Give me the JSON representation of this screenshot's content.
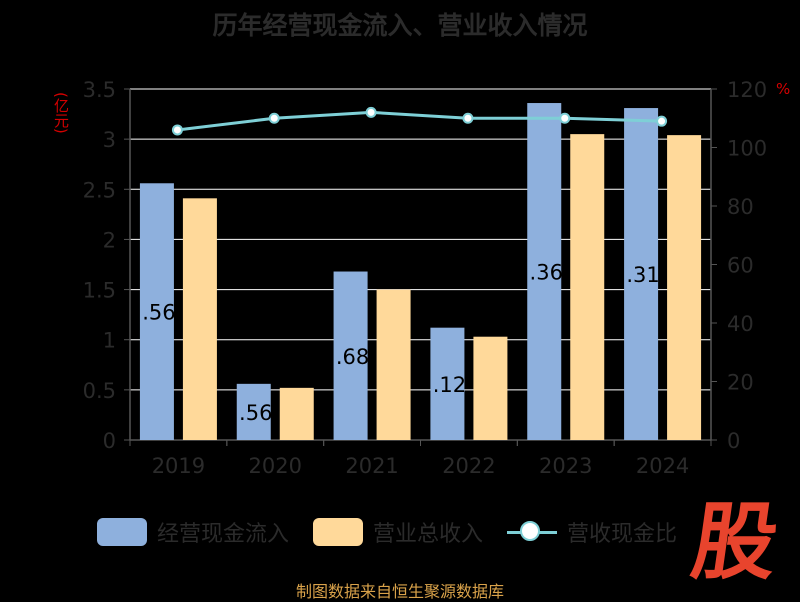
{
  "chart_data": {
    "type": "bar",
    "title": "历年经营现金流入、营业收入情况",
    "categories": [
      "2019",
      "2020",
      "2021",
      "2022",
      "2023",
      "2024"
    ],
    "series": [
      {
        "name": "经营现金流入",
        "type": "bar",
        "axis": "left",
        "color": "#8eb0dd",
        "values": [
          2.56,
          0.56,
          1.68,
          1.12,
          3.36,
          3.31
        ]
      },
      {
        "name": "营业总收入",
        "type": "bar",
        "axis": "left",
        "color": "#ffd99a",
        "values": [
          2.41,
          0.52,
          1.5,
          1.03,
          3.05,
          3.04
        ]
      },
      {
        "name": "营收现金比",
        "type": "line",
        "axis": "right",
        "color": "#7ecfd6",
        "values": [
          106,
          110,
          112,
          110,
          110,
          109
        ]
      }
    ],
    "data_labels": [
      ".56",
      ".56",
      ".68",
      ".12",
      ".36",
      ".31"
    ],
    "left_axis": {
      "unit": "(亿元)",
      "min": 0,
      "max": 3.5,
      "ticks": [
        "0",
        "0.5",
        "1",
        "1.5",
        "2",
        "2.5",
        "3",
        "3.5"
      ]
    },
    "right_axis": {
      "unit": "%",
      "min": 0,
      "max": 120,
      "ticks": [
        "0",
        "20",
        "40",
        "60",
        "80",
        "100",
        "120"
      ]
    },
    "grid": true,
    "legend_position": "bottom"
  },
  "logo_text": "股",
  "source": "制图数据来自恒生聚源数据库"
}
